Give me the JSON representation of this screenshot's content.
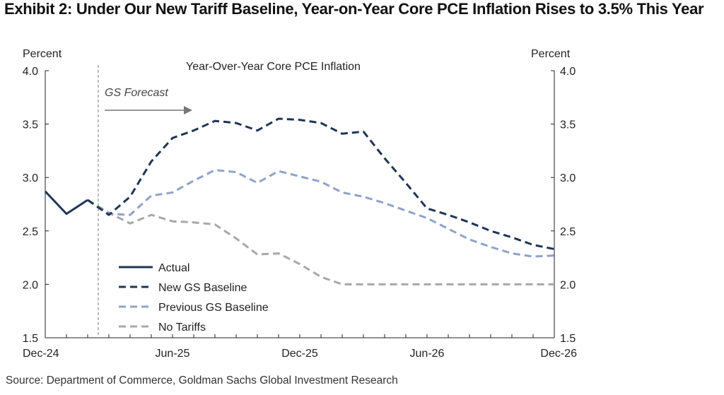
{
  "exhibit_title": "Exhibit 2: Under Our New Tariff Baseline, Year-on-Year Core PCE Inflation Rises to 3.5% This Year",
  "source": "Source: Department of Commerce, Goldman Sachs Global Investment Research",
  "colors": {
    "actual": "#1f3556",
    "new_baseline": "#1f3556",
    "previous_baseline": "#8ea3c8",
    "no_tariffs": "#a8a8a8",
    "axis": "#222222"
  },
  "chart_data": {
    "type": "line",
    "title": "Year-Over-Year  Core PCE Inflation",
    "ylabel_left": "Percent",
    "ylabel_right": "Percent",
    "ylim": [
      1.5,
      4.0
    ],
    "yticks": [
      "4.0",
      "3.5",
      "3.0",
      "2.5",
      "2.0",
      "1.5"
    ],
    "ytick_values": [
      4.0,
      3.5,
      3.0,
      2.5,
      2.0,
      1.5
    ],
    "xlim": [
      0,
      24
    ],
    "xticks": [
      "Dec-24",
      "Jun-25",
      "Dec-25",
      "Jun-26",
      "Dec-26"
    ],
    "xtick_values": [
      0,
      6,
      12,
      18,
      24
    ],
    "forecast_start": 2.5,
    "forecast_label": "GS Forecast",
    "series": [
      {
        "name": "Actual",
        "style": "solid",
        "x": [
          0,
          1,
          2
        ],
        "values": [
          2.87,
          2.66,
          2.79
        ]
      },
      {
        "name": "New GS Baseline",
        "style": "dashed",
        "x": [
          2,
          3,
          4,
          5,
          6,
          7,
          8,
          9,
          10,
          11,
          12,
          13,
          14,
          15,
          16,
          17,
          18,
          19,
          20,
          21,
          22,
          23,
          24
        ],
        "values": [
          2.79,
          2.65,
          2.82,
          3.15,
          3.37,
          3.44,
          3.53,
          3.51,
          3.44,
          3.55,
          3.54,
          3.51,
          3.41,
          3.43,
          3.18,
          2.95,
          2.71,
          2.65,
          2.58,
          2.5,
          2.44,
          2.37,
          2.33
        ]
      },
      {
        "name": "Previous GS Baseline",
        "style": "dashed",
        "x": [
          2,
          3,
          4,
          5,
          6,
          7,
          8,
          9,
          10,
          11,
          12,
          13,
          14,
          15,
          16,
          17,
          18,
          19,
          20,
          21,
          22,
          23,
          24
        ],
        "values": [
          2.79,
          2.66,
          2.65,
          2.83,
          2.86,
          2.97,
          3.07,
          3.05,
          2.95,
          3.06,
          3.01,
          2.96,
          2.86,
          2.82,
          2.76,
          2.69,
          2.62,
          2.52,
          2.42,
          2.35,
          2.29,
          2.26,
          2.27
        ]
      },
      {
        "name": "No Tariffs",
        "style": "dashed",
        "x": [
          2,
          3,
          4,
          5,
          6,
          7,
          8,
          9,
          10,
          11,
          12,
          13,
          14,
          15,
          16,
          17,
          18,
          19,
          20,
          21,
          22,
          23,
          24
        ],
        "values": [
          2.79,
          2.67,
          2.57,
          2.65,
          2.59,
          2.58,
          2.56,
          2.43,
          2.28,
          2.29,
          2.19,
          2.07,
          2.0,
          2.0,
          2.0,
          2.0,
          2.0,
          2.0,
          2.0,
          2.0,
          2.0,
          2.0,
          2.0
        ]
      }
    ],
    "legend": [
      "Actual",
      "New GS Baseline",
      "Previous GS Baseline",
      "No Tariffs"
    ],
    "legend_position": "lower-left"
  }
}
